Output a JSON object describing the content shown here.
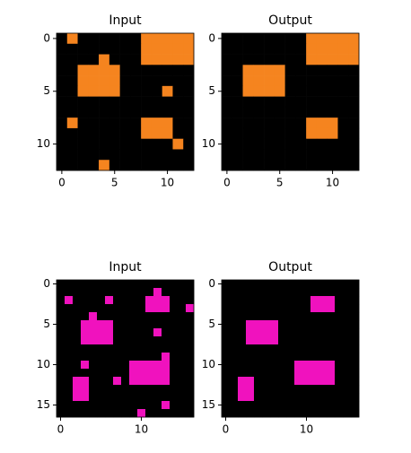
{
  "chart_data": [
    {
      "type": "heatmap",
      "title": "Input",
      "colors": [
        "#000000",
        "#f5841f"
      ],
      "xlim": [
        -0.5,
        12.5
      ],
      "ylim": [
        12.5,
        -0.5
      ],
      "xticks": [
        0,
        5,
        10
      ],
      "yticks": [
        0,
        5,
        10
      ],
      "values": [
        [
          0,
          1,
          0,
          0,
          0,
          0,
          0,
          0,
          1,
          1,
          1,
          1,
          1
        ],
        [
          0,
          0,
          0,
          0,
          0,
          0,
          0,
          0,
          1,
          1,
          1,
          1,
          1
        ],
        [
          0,
          0,
          0,
          0,
          1,
          0,
          0,
          0,
          1,
          1,
          1,
          1,
          1
        ],
        [
          0,
          0,
          1,
          1,
          1,
          1,
          0,
          0,
          0,
          0,
          0,
          0,
          0
        ],
        [
          0,
          0,
          1,
          1,
          1,
          1,
          0,
          0,
          0,
          0,
          0,
          0,
          0
        ],
        [
          0,
          0,
          1,
          1,
          1,
          1,
          0,
          0,
          0,
          0,
          1,
          0,
          0
        ],
        [
          0,
          0,
          0,
          0,
          0,
          0,
          0,
          0,
          0,
          0,
          0,
          0,
          0
        ],
        [
          0,
          0,
          0,
          0,
          0,
          0,
          0,
          0,
          0,
          0,
          0,
          0,
          0
        ],
        [
          0,
          1,
          0,
          0,
          0,
          0,
          0,
          0,
          1,
          1,
          1,
          0,
          0
        ],
        [
          0,
          0,
          0,
          0,
          0,
          0,
          0,
          0,
          1,
          1,
          1,
          0,
          0
        ],
        [
          0,
          0,
          0,
          0,
          0,
          0,
          0,
          0,
          0,
          0,
          0,
          1,
          0
        ],
        [
          0,
          0,
          0,
          0,
          0,
          0,
          0,
          0,
          0,
          0,
          0,
          0,
          0
        ],
        [
          0,
          0,
          0,
          0,
          1,
          0,
          0,
          0,
          0,
          0,
          0,
          0,
          0
        ]
      ]
    },
    {
      "type": "heatmap",
      "title": "Output",
      "colors": [
        "#000000",
        "#f5841f"
      ],
      "xlim": [
        -0.5,
        12.5
      ],
      "ylim": [
        12.5,
        -0.5
      ],
      "xticks": [
        0,
        5,
        10
      ],
      "yticks": [
        0,
        5,
        10
      ],
      "values": [
        [
          0,
          0,
          0,
          0,
          0,
          0,
          0,
          0,
          1,
          1,
          1,
          1,
          1
        ],
        [
          0,
          0,
          0,
          0,
          0,
          0,
          0,
          0,
          1,
          1,
          1,
          1,
          1
        ],
        [
          0,
          0,
          0,
          0,
          0,
          0,
          0,
          0,
          1,
          1,
          1,
          1,
          1
        ],
        [
          0,
          0,
          1,
          1,
          1,
          1,
          0,
          0,
          0,
          0,
          0,
          0,
          0
        ],
        [
          0,
          0,
          1,
          1,
          1,
          1,
          0,
          0,
          0,
          0,
          0,
          0,
          0
        ],
        [
          0,
          0,
          1,
          1,
          1,
          1,
          0,
          0,
          0,
          0,
          0,
          0,
          0
        ],
        [
          0,
          0,
          0,
          0,
          0,
          0,
          0,
          0,
          0,
          0,
          0,
          0,
          0
        ],
        [
          0,
          0,
          0,
          0,
          0,
          0,
          0,
          0,
          0,
          0,
          0,
          0,
          0
        ],
        [
          0,
          0,
          0,
          0,
          0,
          0,
          0,
          0,
          1,
          1,
          1,
          0,
          0
        ],
        [
          0,
          0,
          0,
          0,
          0,
          0,
          0,
          0,
          1,
          1,
          1,
          0,
          0
        ],
        [
          0,
          0,
          0,
          0,
          0,
          0,
          0,
          0,
          0,
          0,
          0,
          0,
          0
        ],
        [
          0,
          0,
          0,
          0,
          0,
          0,
          0,
          0,
          0,
          0,
          0,
          0,
          0
        ],
        [
          0,
          0,
          0,
          0,
          0,
          0,
          0,
          0,
          0,
          0,
          0,
          0,
          0
        ]
      ]
    },
    {
      "type": "heatmap",
      "title": "Input",
      "colors": [
        "#000000",
        "#f012be"
      ],
      "xlim": [
        -0.5,
        16.5
      ],
      "ylim": [
        16.5,
        -0.5
      ],
      "xticks": [
        0,
        10
      ],
      "yticks": [
        0,
        5,
        10,
        15
      ],
      "values": [
        [
          0,
          0,
          0,
          0,
          0,
          0,
          0,
          0,
          0,
          0,
          0,
          0,
          0,
          0,
          0,
          0,
          0
        ],
        [
          0,
          0,
          0,
          0,
          0,
          0,
          0,
          0,
          0,
          0,
          0,
          0,
          1,
          0,
          0,
          0,
          0
        ],
        [
          0,
          1,
          0,
          0,
          0,
          0,
          1,
          0,
          0,
          0,
          0,
          1,
          1,
          1,
          0,
          0,
          0
        ],
        [
          0,
          0,
          0,
          0,
          0,
          0,
          0,
          0,
          0,
          0,
          0,
          1,
          1,
          1,
          0,
          0,
          1
        ],
        [
          0,
          0,
          0,
          0,
          1,
          0,
          0,
          0,
          0,
          0,
          0,
          0,
          0,
          0,
          0,
          0,
          0
        ],
        [
          0,
          0,
          0,
          1,
          1,
          1,
          1,
          0,
          0,
          0,
          0,
          0,
          0,
          0,
          0,
          0,
          0
        ],
        [
          0,
          0,
          0,
          1,
          1,
          1,
          1,
          0,
          0,
          0,
          0,
          0,
          1,
          0,
          0,
          0,
          0
        ],
        [
          0,
          0,
          0,
          1,
          1,
          1,
          1,
          0,
          0,
          0,
          0,
          0,
          0,
          0,
          0,
          0,
          0
        ],
        [
          0,
          0,
          0,
          0,
          0,
          0,
          0,
          0,
          0,
          0,
          0,
          0,
          0,
          0,
          0,
          0,
          0
        ],
        [
          0,
          0,
          0,
          0,
          0,
          0,
          0,
          0,
          0,
          0,
          0,
          0,
          0,
          1,
          0,
          0,
          0
        ],
        [
          0,
          0,
          0,
          1,
          0,
          0,
          0,
          0,
          0,
          1,
          1,
          1,
          1,
          1,
          0,
          0,
          0
        ],
        [
          0,
          0,
          0,
          0,
          0,
          0,
          0,
          0,
          0,
          1,
          1,
          1,
          1,
          1,
          0,
          0,
          0
        ],
        [
          0,
          0,
          1,
          1,
          0,
          0,
          0,
          1,
          0,
          1,
          1,
          1,
          1,
          1,
          0,
          0,
          0
        ],
        [
          0,
          0,
          1,
          1,
          0,
          0,
          0,
          0,
          0,
          0,
          0,
          0,
          0,
          0,
          0,
          0,
          0
        ],
        [
          0,
          0,
          1,
          1,
          0,
          0,
          0,
          0,
          0,
          0,
          0,
          0,
          0,
          0,
          0,
          0,
          0
        ],
        [
          0,
          0,
          0,
          0,
          0,
          0,
          0,
          0,
          0,
          0,
          0,
          0,
          0,
          1,
          0,
          0,
          0
        ],
        [
          0,
          0,
          0,
          0,
          0,
          0,
          0,
          0,
          0,
          0,
          1,
          0,
          0,
          0,
          0,
          0,
          0
        ]
      ]
    },
    {
      "type": "heatmap",
      "title": "Output",
      "colors": [
        "#000000",
        "#f012be"
      ],
      "xlim": [
        -0.5,
        16.5
      ],
      "ylim": [
        16.5,
        -0.5
      ],
      "xticks": [
        0,
        10
      ],
      "yticks": [
        0,
        5,
        10,
        15
      ],
      "values": [
        [
          0,
          0,
          0,
          0,
          0,
          0,
          0,
          0,
          0,
          0,
          0,
          0,
          0,
          0,
          0,
          0,
          0
        ],
        [
          0,
          0,
          0,
          0,
          0,
          0,
          0,
          0,
          0,
          0,
          0,
          0,
          0,
          0,
          0,
          0,
          0
        ],
        [
          0,
          0,
          0,
          0,
          0,
          0,
          0,
          0,
          0,
          0,
          0,
          1,
          1,
          1,
          0,
          0,
          0
        ],
        [
          0,
          0,
          0,
          0,
          0,
          0,
          0,
          0,
          0,
          0,
          0,
          1,
          1,
          1,
          0,
          0,
          0
        ],
        [
          0,
          0,
          0,
          0,
          0,
          0,
          0,
          0,
          0,
          0,
          0,
          0,
          0,
          0,
          0,
          0,
          0
        ],
        [
          0,
          0,
          0,
          1,
          1,
          1,
          1,
          0,
          0,
          0,
          0,
          0,
          0,
          0,
          0,
          0,
          0
        ],
        [
          0,
          0,
          0,
          1,
          1,
          1,
          1,
          0,
          0,
          0,
          0,
          0,
          0,
          0,
          0,
          0,
          0
        ],
        [
          0,
          0,
          0,
          1,
          1,
          1,
          1,
          0,
          0,
          0,
          0,
          0,
          0,
          0,
          0,
          0,
          0
        ],
        [
          0,
          0,
          0,
          0,
          0,
          0,
          0,
          0,
          0,
          0,
          0,
          0,
          0,
          0,
          0,
          0,
          0
        ],
        [
          0,
          0,
          0,
          0,
          0,
          0,
          0,
          0,
          0,
          0,
          0,
          0,
          0,
          0,
          0,
          0,
          0
        ],
        [
          0,
          0,
          0,
          0,
          0,
          0,
          0,
          0,
          0,
          1,
          1,
          1,
          1,
          1,
          0,
          0,
          0
        ],
        [
          0,
          0,
          0,
          0,
          0,
          0,
          0,
          0,
          0,
          1,
          1,
          1,
          1,
          1,
          0,
          0,
          0
        ],
        [
          0,
          0,
          1,
          1,
          0,
          0,
          0,
          0,
          0,
          1,
          1,
          1,
          1,
          1,
          0,
          0,
          0
        ],
        [
          0,
          0,
          1,
          1,
          0,
          0,
          0,
          0,
          0,
          0,
          0,
          0,
          0,
          0,
          0,
          0,
          0
        ],
        [
          0,
          0,
          1,
          1,
          0,
          0,
          0,
          0,
          0,
          0,
          0,
          0,
          0,
          0,
          0,
          0,
          0
        ],
        [
          0,
          0,
          0,
          0,
          0,
          0,
          0,
          0,
          0,
          0,
          0,
          0,
          0,
          0,
          0,
          0,
          0
        ],
        [
          0,
          0,
          0,
          0,
          0,
          0,
          0,
          0,
          0,
          0,
          0,
          0,
          0,
          0,
          0,
          0,
          0
        ]
      ]
    }
  ]
}
